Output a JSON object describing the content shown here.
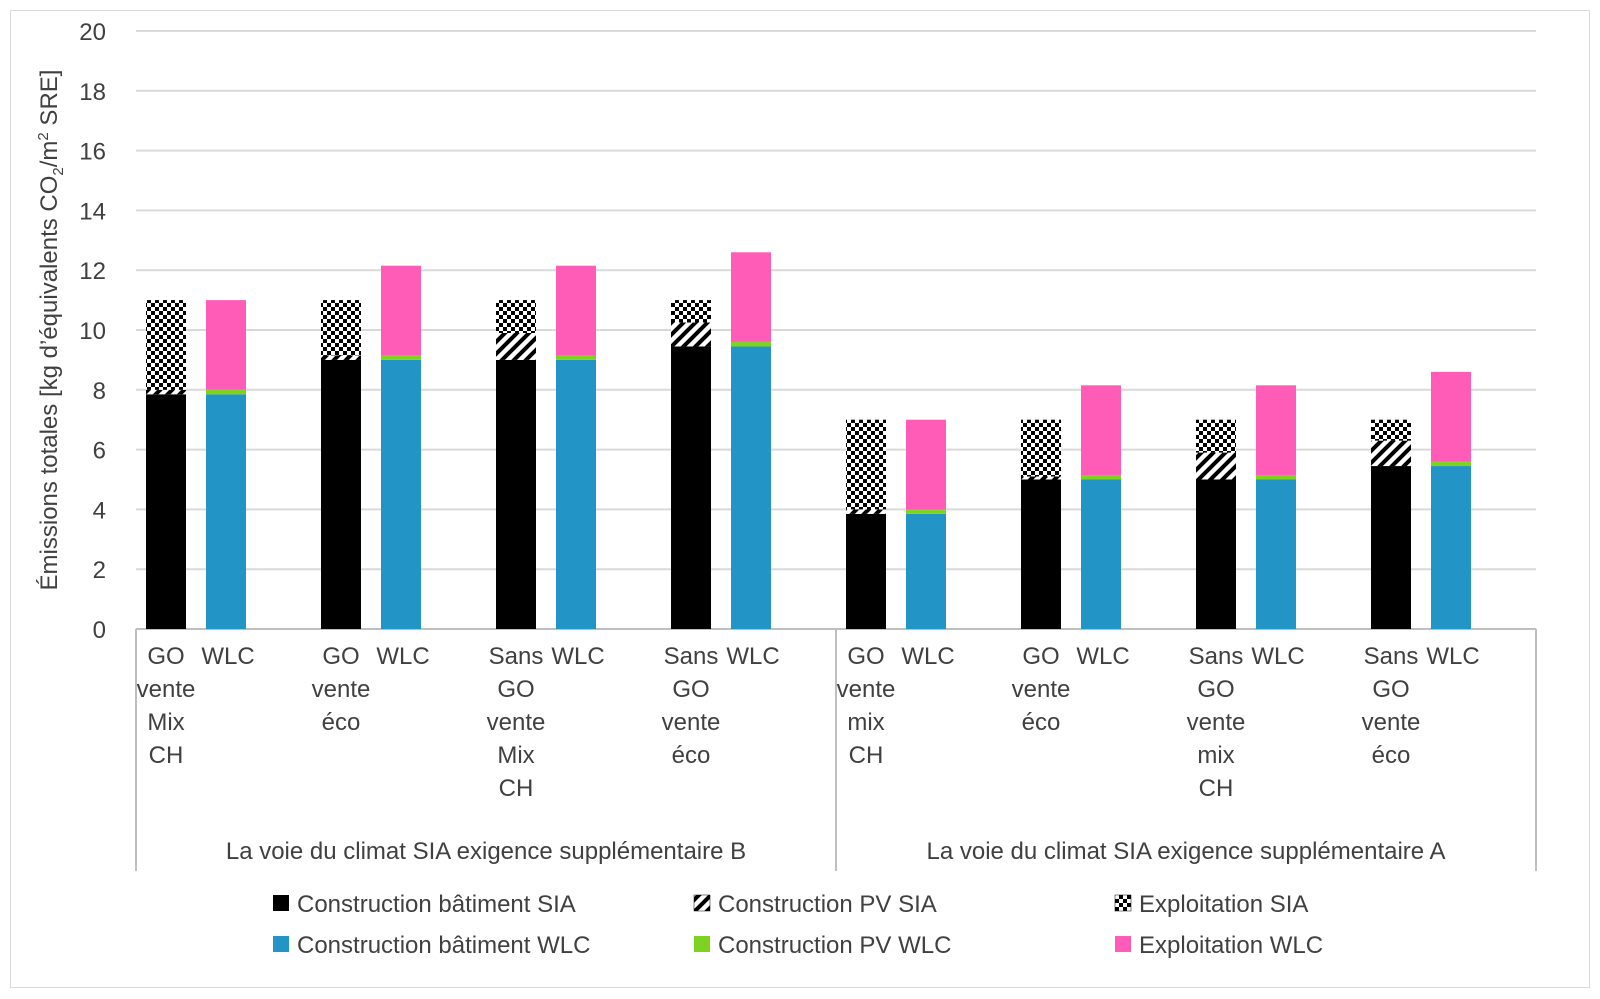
{
  "chart_data": {
    "type": "bar",
    "stacked": true,
    "ylabel_main": "Émissions totales [kg d’équivalents CO",
    "ylabel_sub": "2",
    "ylabel_mid": "/m",
    "ylabel_sup": "2",
    "ylabel_end": " SRE]",
    "ylim": [
      0,
      20
    ],
    "ytick_step": 2,
    "ytick_labels": [
      "0",
      "2",
      "4",
      "6",
      "8",
      "10",
      "12",
      "14",
      "16",
      "18",
      "20"
    ],
    "grid": true,
    "groups": [
      {
        "label": "La voie du climat SIA exigence supplémentaire B",
        "clusters": [
          {
            "label_lines": [
              "GO",
              "vente",
              "Mix",
              "CH"
            ],
            "wlc_label": "WLC",
            "sia": [
              7.85,
              0.15,
              3.0
            ],
            "wlc": [
              7.85,
              0.15,
              3.0
            ]
          },
          {
            "label_lines": [
              "GO",
              "vente",
              "éco"
            ],
            "wlc_label": "WLC",
            "sia": [
              9.0,
              0.15,
              1.85
            ],
            "wlc": [
              9.0,
              0.15,
              3.0
            ]
          },
          {
            "label_lines": [
              "Sans",
              "GO",
              "vente",
              "Mix",
              "CH"
            ],
            "wlc_label": "WLC",
            "sia": [
              9.0,
              0.9,
              1.1
            ],
            "wlc": [
              9.0,
              0.15,
              3.0
            ]
          },
          {
            "label_lines": [
              "Sans",
              "GO",
              "vente",
              "éco"
            ],
            "wlc_label": "WLC",
            "sia": [
              9.45,
              0.8,
              0.75
            ],
            "wlc": [
              9.45,
              0.15,
              3.0
            ]
          }
        ]
      },
      {
        "label": "La voie du climat SIA exigence supplémentaire A",
        "clusters": [
          {
            "label_lines": [
              "GO",
              "vente",
              "mix",
              "CH"
            ],
            "wlc_label": "WLC",
            "sia": [
              3.85,
              0.15,
              3.0
            ],
            "wlc": [
              3.85,
              0.15,
              3.0
            ]
          },
          {
            "label_lines": [
              "GO",
              "vente",
              "éco"
            ],
            "wlc_label": "WLC",
            "sia": [
              5.0,
              0.1,
              1.9
            ],
            "wlc": [
              5.0,
              0.15,
              3.0
            ]
          },
          {
            "label_lines": [
              "Sans",
              "GO",
              "vente",
              "mix",
              "CH"
            ],
            "wlc_label": "WLC",
            "sia": [
              5.0,
              0.9,
              1.1
            ],
            "wlc": [
              5.0,
              0.15,
              3.0
            ]
          },
          {
            "label_lines": [
              "Sans",
              "GO",
              "vente",
              "éco"
            ],
            "wlc_label": "WLC",
            "sia": [
              5.45,
              0.85,
              0.7
            ],
            "wlc": [
              5.45,
              0.15,
              3.0
            ]
          }
        ]
      }
    ],
    "series": [
      {
        "name": "Construction bâtiment SIA",
        "color": "#000000",
        "pattern": "solid"
      },
      {
        "name": "Construction PV SIA",
        "color": "#000000",
        "pattern": "diagonal"
      },
      {
        "name": "Exploitation SIA",
        "color": "#000000",
        "pattern": "checker"
      },
      {
        "name": "Construction bâtiment WLC",
        "color": "#2394c6",
        "pattern": "solid"
      },
      {
        "name": "Construction PV WLC",
        "color": "#7ed321",
        "pattern": "solid"
      },
      {
        "name": "Exploitation WLC",
        "color": "#ff5cb8",
        "pattern": "solid"
      }
    ],
    "legend_position": "bottom"
  }
}
